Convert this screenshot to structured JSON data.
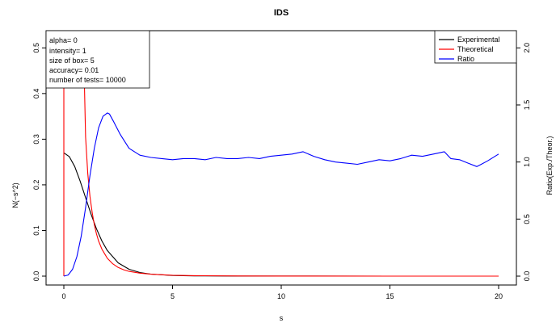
{
  "chart_data": {
    "type": "line",
    "title": "IDS",
    "xlabel": "s",
    "ylabel": "N(−s^2)",
    "y2label": "Ratio(Exp./Theor.)",
    "xlim": [
      0,
      20
    ],
    "ylim": [
      0,
      0.52
    ],
    "y2lim": [
      0,
      2.08
    ],
    "x_ticks": [
      0,
      5,
      10,
      15,
      20
    ],
    "y_ticks": [
      0.0,
      0.1,
      0.2,
      0.3,
      0.4,
      0.5
    ],
    "y2_ticks": [
      0.0,
      0.5,
      1.0,
      1.5,
      2.0
    ],
    "x_tick_labels": [
      "0",
      "5",
      "10",
      "15",
      "20"
    ],
    "y_tick_labels": [
      "0.0",
      "0.1",
      "0.2",
      "0.3",
      "0.4",
      "0.5"
    ],
    "y2_tick_labels": [
      "0.0",
      "0.5",
      "1.0",
      "1.5",
      "2.0"
    ],
    "grid": false,
    "legend_position": "top-right",
    "info_box_position": "top-left",
    "info_lines": [
      "alpha= 0",
      "intensity= 1",
      "size of box= 5",
      "accuracy= 0.01",
      "number of tests= 10000"
    ],
    "series": [
      {
        "name": "Experimental",
        "color": "#000000",
        "axis": "left",
        "x": [
          0,
          0.25,
          0.5,
          0.75,
          1.0,
          1.25,
          1.5,
          1.75,
          2.0,
          2.5,
          3.0,
          3.5,
          4.0,
          5.0,
          6.0,
          8.0,
          10.0,
          15.0,
          20.0
        ],
        "y": [
          0.27,
          0.262,
          0.24,
          0.208,
          0.172,
          0.136,
          0.104,
          0.077,
          0.056,
          0.029,
          0.015,
          0.008,
          0.0045,
          0.0015,
          0.0006,
          0.0002,
          0.0001,
          0.0,
          0.0
        ]
      },
      {
        "name": "Theoretical",
        "color": "#ff0000",
        "axis": "left",
        "x": [
          0.9,
          1.0,
          1.1,
          1.2,
          1.3,
          1.4,
          1.5,
          1.6,
          1.75,
          2.0,
          2.25,
          2.5,
          2.75,
          3.0,
          3.5,
          4.0,
          5.0,
          6.0,
          8.0,
          10.0,
          15.0,
          20.0
        ],
        "y": [
          0.52,
          0.305,
          0.225,
          0.175,
          0.14,
          0.113,
          0.093,
          0.077,
          0.059,
          0.039,
          0.027,
          0.019,
          0.014,
          0.0105,
          0.0065,
          0.0042,
          0.002,
          0.0011,
          0.0004,
          0.0002,
          0.0,
          0.0
        ]
      },
      {
        "name": "Ratio",
        "color": "#0000ff",
        "axis": "right",
        "x": [
          0,
          0.2,
          0.4,
          0.6,
          0.8,
          1.0,
          1.2,
          1.4,
          1.6,
          1.8,
          2.0,
          2.1,
          2.3,
          2.6,
          3.0,
          3.5,
          4.0,
          4.5,
          5.0,
          5.5,
          6.0,
          6.5,
          7.0,
          7.5,
          8.0,
          8.5,
          9.0,
          9.5,
          10.0,
          10.5,
          11.0,
          11.5,
          12.0,
          12.5,
          13.0,
          13.5,
          14.0,
          14.5,
          15.0,
          15.5,
          16.0,
          16.5,
          17.0,
          17.5,
          17.8,
          18.2,
          18.6,
          19.0,
          19.2,
          19.5,
          20.0
        ],
        "y": [
          0.0,
          0.01,
          0.06,
          0.17,
          0.35,
          0.6,
          0.88,
          1.12,
          1.3,
          1.4,
          1.43,
          1.42,
          1.35,
          1.24,
          1.12,
          1.06,
          1.04,
          1.03,
          1.02,
          1.03,
          1.03,
          1.02,
          1.04,
          1.03,
          1.03,
          1.04,
          1.03,
          1.05,
          1.06,
          1.07,
          1.09,
          1.05,
          1.02,
          1.0,
          0.99,
          0.98,
          1.0,
          1.02,
          1.01,
          1.03,
          1.06,
          1.05,
          1.07,
          1.09,
          1.03,
          1.02,
          0.99,
          0.96,
          0.98,
          1.01,
          1.07
        ]
      }
    ]
  }
}
